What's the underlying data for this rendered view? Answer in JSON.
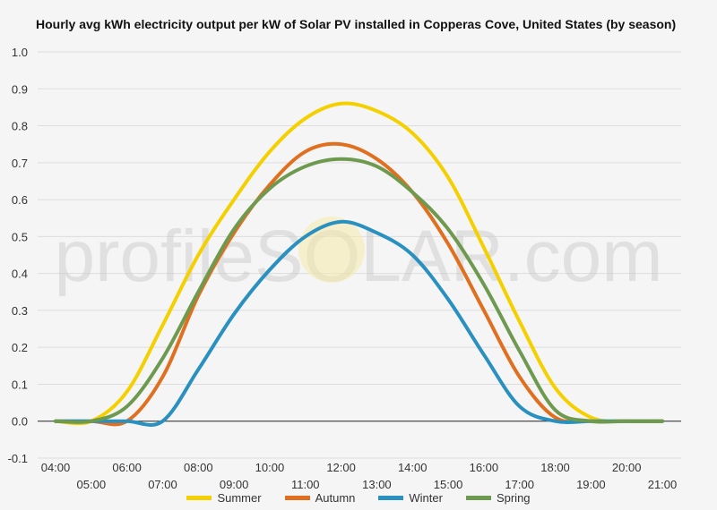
{
  "chart_data": {
    "type": "line",
    "title": "Hourly avg kWh electricity output per kW of Solar PV installed in Copperas Cove, United States (by season)",
    "x": [
      "04:00",
      "05:00",
      "06:00",
      "07:00",
      "08:00",
      "09:00",
      "10:00",
      "11:00",
      "12:00",
      "13:00",
      "14:00",
      "15:00",
      "16:00",
      "17:00",
      "18:00",
      "19:00",
      "20:00",
      "21:00"
    ],
    "ylim": [
      -0.1,
      1.0
    ],
    "yticks": [
      "1.0",
      "0.9",
      "0.8",
      "0.7",
      "0.6",
      "0.5",
      "0.4",
      "0.3",
      "0.2",
      "0.1",
      "0.0",
      "-0.1"
    ],
    "grid": true,
    "legend_position": "bottom",
    "watermark": "profileSOLAR.com",
    "series": [
      {
        "name": "Summer",
        "color": "#f5d000",
        "values": [
          0.0,
          0.0,
          0.08,
          0.26,
          0.45,
          0.6,
          0.73,
          0.82,
          0.86,
          0.84,
          0.78,
          0.66,
          0.47,
          0.27,
          0.09,
          0.01,
          0.0,
          0.0
        ]
      },
      {
        "name": "Autumn",
        "color": "#e07020",
        "values": [
          0.0,
          0.0,
          0.0,
          0.12,
          0.34,
          0.51,
          0.64,
          0.73,
          0.75,
          0.71,
          0.62,
          0.48,
          0.3,
          0.12,
          0.01,
          0.0,
          0.0,
          0.0
        ]
      },
      {
        "name": "Winter",
        "color": "#2990c0",
        "values": [
          0.0,
          0.0,
          0.0,
          0.0,
          0.14,
          0.29,
          0.41,
          0.5,
          0.54,
          0.51,
          0.45,
          0.33,
          0.18,
          0.04,
          0.0,
          0.0,
          0.0,
          0.0
        ]
      },
      {
        "name": "Spring",
        "color": "#6e9a50",
        "values": [
          0.0,
          0.0,
          0.04,
          0.17,
          0.35,
          0.52,
          0.63,
          0.69,
          0.71,
          0.69,
          0.62,
          0.52,
          0.37,
          0.19,
          0.03,
          0.0,
          0.0,
          0.0
        ]
      }
    ]
  }
}
